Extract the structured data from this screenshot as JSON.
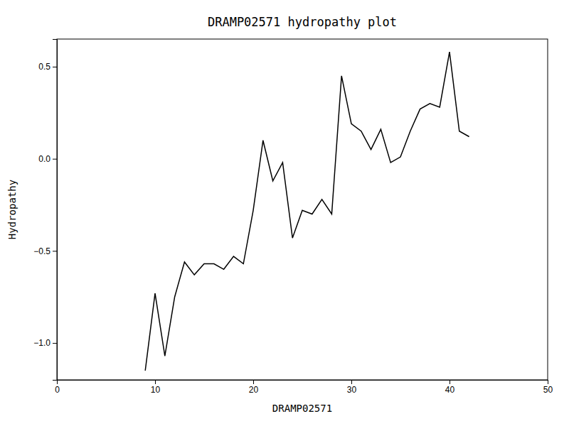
{
  "chart_data": {
    "type": "line",
    "title": "DRAMP02571 hydropathy plot",
    "xlabel": "DRAMP02571",
    "ylabel": "Hydropathy",
    "x": [
      9,
      10,
      11,
      12,
      13,
      14,
      15,
      16,
      17,
      18,
      19,
      20,
      21,
      22,
      23,
      24,
      25,
      26,
      27,
      28,
      29,
      30,
      31,
      32,
      33,
      34,
      35,
      36,
      37,
      38,
      39,
      40,
      41,
      42
    ],
    "values": [
      -1.15,
      -0.73,
      -1.07,
      -0.75,
      -0.56,
      -0.63,
      -0.57,
      -0.57,
      -0.6,
      -0.53,
      -0.57,
      -0.28,
      0.1,
      -0.12,
      -0.02,
      -0.43,
      -0.28,
      -0.3,
      -0.22,
      -0.3,
      0.45,
      0.19,
      0.15,
      0.05,
      0.16,
      -0.02,
      0.01,
      0.15,
      0.27,
      0.3,
      0.28,
      0.58,
      0.15,
      0.12
    ],
    "color": "#000000",
    "xlim": [
      0,
      50
    ],
    "ylim": [
      -1.2,
      0.65
    ],
    "xticks": [
      0,
      10,
      20,
      30,
      40,
      50
    ],
    "yticks": [
      {
        "value": -1.0,
        "label": "−1.0"
      },
      {
        "value": -0.5,
        "label": "−0.5"
      },
      {
        "value": 0.0,
        "label": "0.0"
      },
      {
        "value": 0.5,
        "label": "0.5"
      }
    ],
    "grid": false
  }
}
